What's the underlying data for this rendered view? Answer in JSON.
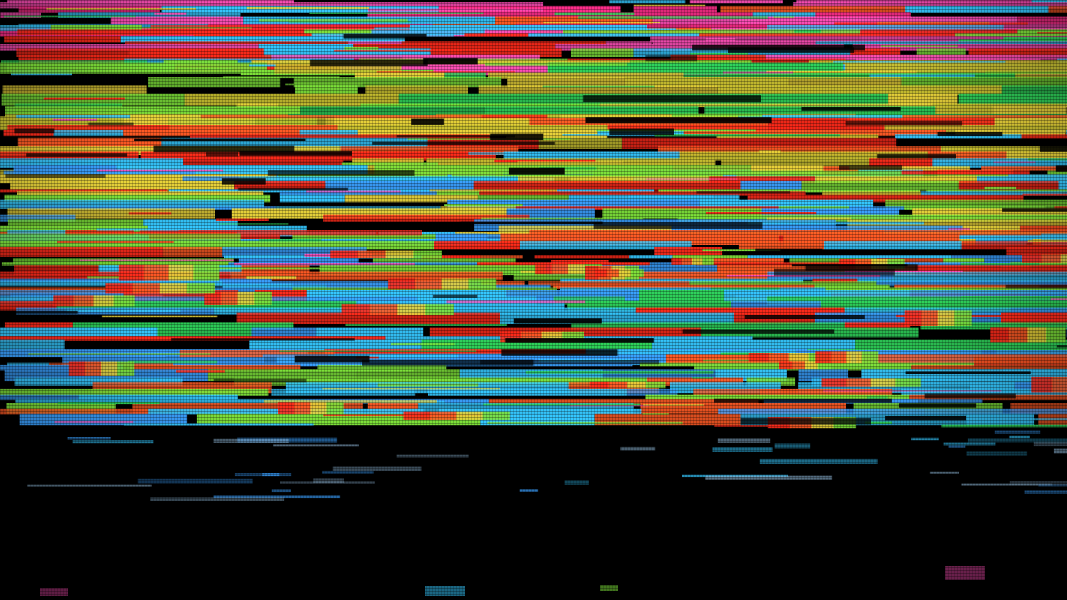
{
  "scene": {
    "subject": "glitched-crt-screen",
    "palette": {
      "magenta": "#ff2d8a",
      "pink": "#ff4fb8",
      "cyan": "#35c8ff",
      "sky_blue": "#3aa0ff",
      "lime": "#7ee23a",
      "green": "#2fd35a",
      "yellow": "#e8d23a",
      "olive_yellow": "#c9c030",
      "red": "#ff2a1a",
      "orange_red": "#ff5a24",
      "background": "#000000"
    }
  }
}
